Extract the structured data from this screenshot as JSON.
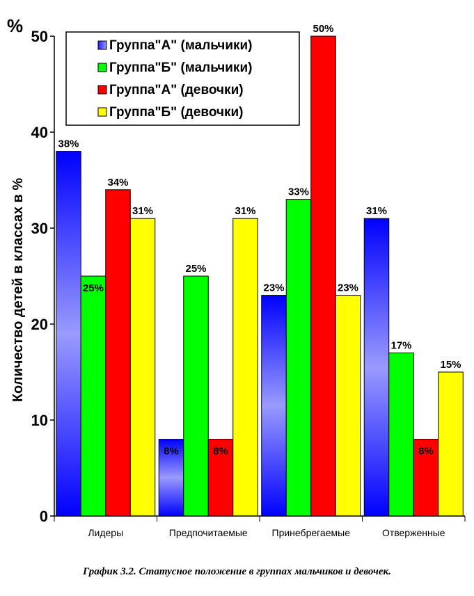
{
  "chart_data": {
    "type": "bar",
    "unit_symbol": "%",
    "ylabel": "Количество детей в классах в %",
    "xlabel": "",
    "ylim": [
      0,
      50
    ],
    "yticks": [
      0,
      10,
      20,
      30,
      40,
      50
    ],
    "grid": false,
    "legend_position": "top-left",
    "categories": [
      "Лидеры",
      "Предпочитаемые",
      "Принебрегаемые",
      "Отверженные"
    ],
    "series": [
      {
        "name": "Группа\"А\" (мальчики)",
        "values": [
          38,
          8,
          23,
          31
        ],
        "labels": [
          "38%",
          "8%",
          "23%",
          "31%"
        ],
        "color": "#1f1fff",
        "gradient": true
      },
      {
        "name": "Группа\"Б\" (мальчики)",
        "values": [
          25,
          25,
          33,
          17
        ],
        "labels": [
          "25%",
          "25%",
          "33%",
          "17%"
        ],
        "color": "#00ff00"
      },
      {
        "name": "Группа\"А\" (девочки)",
        "values": [
          34,
          8,
          50,
          8
        ],
        "labels": [
          "34%",
          "8%",
          "50%",
          "8%"
        ],
        "color": "#ff0000"
      },
      {
        "name": "Группа\"Б\" (девочки)",
        "values": [
          31,
          31,
          23,
          15
        ],
        "labels": [
          "31%",
          "31%",
          "23%",
          "15%"
        ],
        "color": "#ffff00"
      }
    ]
  },
  "caption": "График 3.2. Статусное положение в группах мальчиков и девочек."
}
